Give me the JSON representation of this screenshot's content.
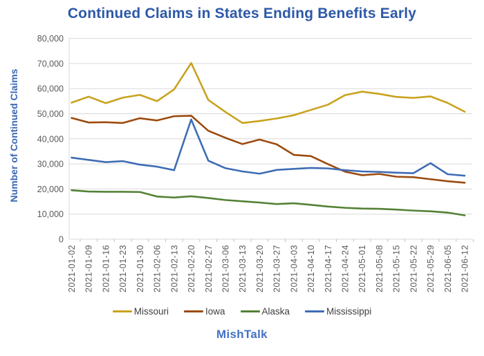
{
  "title": "Continued Claims in States Ending Benefits Early",
  "footer": "MishTalk",
  "colors": {
    "title": "#2C58A8",
    "axis_title": "#3A67B3",
    "tick_label": "#595959",
    "gridline": "#D9D9D9",
    "tick_mark": "#BFBFBF",
    "footer": "#4472C4",
    "legend_text": "#404040"
  },
  "chart_data": {
    "type": "line",
    "title": "Continued Claims in States Ending Benefits Early",
    "xlabel": "",
    "ylabel": "Number of Continued Claims",
    "ylim": [
      0,
      80000
    ],
    "y_tick_step": 10000,
    "grid": "horizontal",
    "legend_position": "bottom",
    "x": [
      "2021-01-02",
      "2021-01-09",
      "2021-01-16",
      "2021-01-23",
      "2021-01-30",
      "2021-02-06",
      "2021-02-13",
      "2021-02-20",
      "2021-02-27",
      "2021-03-06",
      "2021-03-13",
      "2021-03-20",
      "2021-03-27",
      "2021-04-03",
      "2021-04-10",
      "2021-04-17",
      "2021-04-24",
      "2021-05-01",
      "2021-05-08",
      "2021-05-15",
      "2021-05-22",
      "2021-05-29",
      "2021-06-05",
      "2021-06-12"
    ],
    "series": [
      {
        "name": "Missouri",
        "color": "#C9A21D",
        "values": [
          54400,
          56800,
          54200,
          56400,
          57500,
          55000,
          59700,
          70200,
          55500,
          50700,
          46300,
          47100,
          48100,
          49400,
          51500,
          53600,
          57400,
          58800,
          57900,
          56700,
          56300,
          56900,
          54300,
          50800
        ]
      },
      {
        "name": "Iowa",
        "color": "#9C4A0E",
        "values": [
          48300,
          46500,
          46600,
          46300,
          48200,
          47300,
          49000,
          49200,
          43200,
          40400,
          37900,
          39700,
          37800,
          33600,
          33100,
          29900,
          26900,
          25500,
          26000,
          24900,
          24700,
          23900,
          23100,
          22500
        ]
      },
      {
        "name": "Alaska",
        "color": "#538135",
        "values": [
          19500,
          19000,
          18900,
          18900,
          18800,
          17000,
          16600,
          17100,
          16400,
          15600,
          15100,
          14600,
          14000,
          14300,
          13700,
          13000,
          12500,
          12200,
          12100,
          11800,
          11400,
          11100,
          10600,
          9500
        ]
      },
      {
        "name": "Mississippi",
        "color": "#3E6CB5",
        "values": [
          32500,
          31600,
          30700,
          31100,
          29700,
          28900,
          27500,
          47700,
          31300,
          28300,
          27000,
          26100,
          27600,
          28000,
          28400,
          28200,
          27500,
          27000,
          26800,
          26500,
          26300,
          30300,
          25900,
          25300
        ]
      }
    ]
  }
}
